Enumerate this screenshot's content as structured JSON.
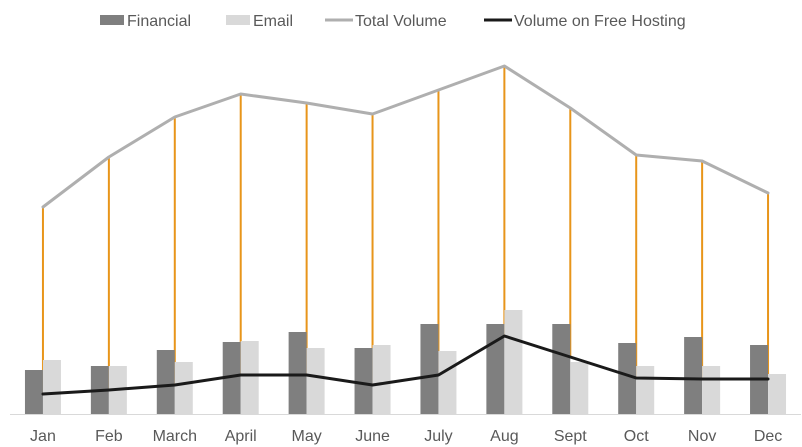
{
  "chart_data": {
    "type": "bar",
    "categories": [
      "Jan",
      "Feb",
      "March",
      "April",
      "May",
      "June",
      "July",
      "Aug",
      "Sept",
      "Oct",
      "Nov",
      "Dec"
    ],
    "series": [
      {
        "name": "Financial",
        "kind": "bar",
        "color": "#7f7f7f",
        "values": [
          44,
          48,
          64,
          72,
          82,
          66,
          90,
          90,
          90,
          71,
          77,
          69
        ]
      },
      {
        "name": "Email",
        "kind": "bar",
        "color": "#d9d9d9",
        "values": [
          54,
          48,
          52,
          73,
          66,
          69,
          63,
          104,
          52,
          48,
          48,
          40
        ]
      },
      {
        "name": "Total Volume",
        "kind": "line",
        "color": "#afafaf",
        "values": [
          207,
          257,
          297,
          320,
          311,
          300,
          324,
          348,
          306,
          259,
          253,
          221
        ]
      },
      {
        "name": "Volume on Free Hosting",
        "kind": "line",
        "color": "#1a1a1a",
        "values": [
          20,
          24,
          29,
          39,
          39,
          29,
          39,
          78,
          57,
          36,
          35,
          35
        ]
      }
    ],
    "drop_lines": {
      "from": "Total Volume",
      "to": "Volume on Free Hosting",
      "color": "#e8951a"
    },
    "ylim": [
      0,
      400
    ],
    "legend_position": "top",
    "grid": false,
    "title": "",
    "xlabel": "",
    "ylabel": ""
  }
}
